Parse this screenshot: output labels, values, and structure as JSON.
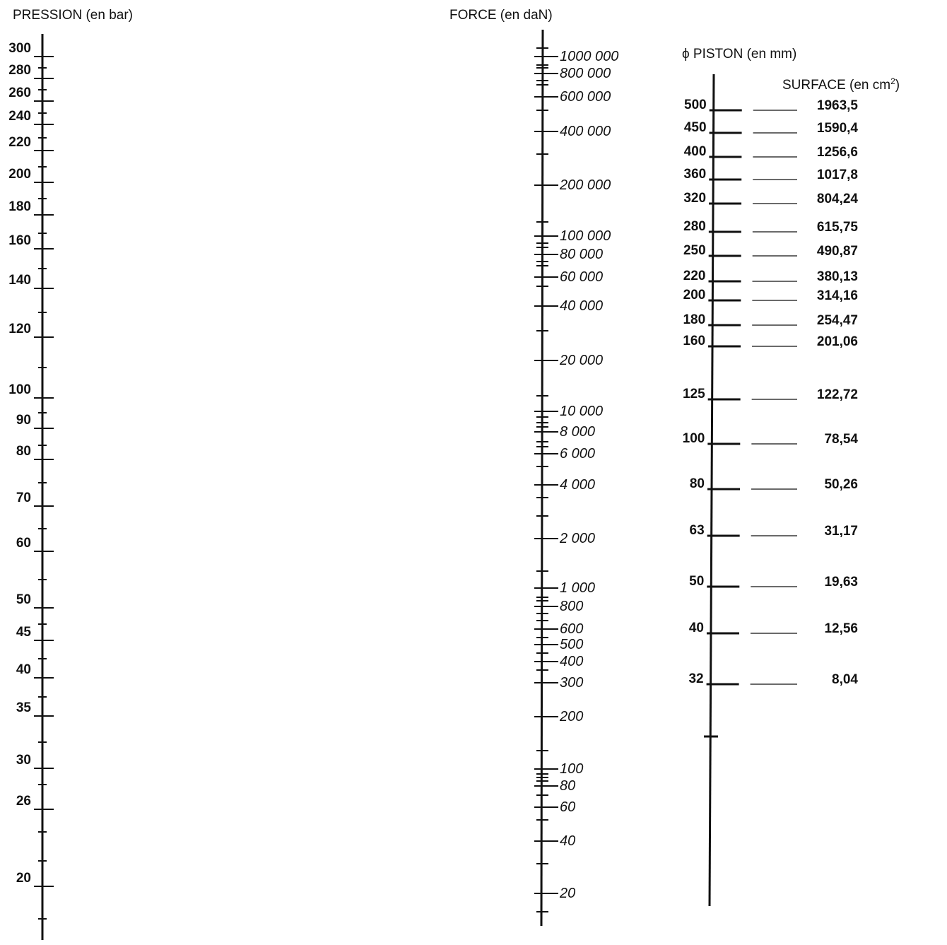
{
  "headers": {
    "pression": "PRESSION (en bar)",
    "force": "FORCE (en daN)",
    "piston": "ϕ PISTON (en mm)",
    "surface_prefix": "SURFACE (en cm",
    "surface_sup": "2",
    "surface_suffix": ")"
  },
  "pression": {
    "labels": [
      "300",
      "280",
      "260",
      "240",
      "220",
      "200",
      "180",
      "160",
      "140",
      "120",
      "100",
      "90",
      "80",
      "70",
      "60",
      "50",
      "45",
      "40",
      "35",
      "30",
      "26",
      "20"
    ]
  },
  "force": {
    "labels": [
      "1000 000",
      "800 000",
      "600 000",
      "400 000",
      "200 000",
      "100 000",
      "80 000",
      "60 000",
      "40 000",
      "20 000",
      "10 000",
      "8 000",
      "6 000",
      "4 000",
      "2 000",
      "1 000",
      "800",
      "600",
      "500",
      "400",
      "300",
      "200",
      "100",
      "80",
      "60",
      "40",
      "20"
    ]
  },
  "piston": {
    "rows": [
      {
        "diameter": "500",
        "surface": "1963,5"
      },
      {
        "diameter": "450",
        "surface": "1590,4"
      },
      {
        "diameter": "400",
        "surface": "1256,6"
      },
      {
        "diameter": "360",
        "surface": "1017,8"
      },
      {
        "diameter": "320",
        "surface": "804,24"
      },
      {
        "diameter": "280",
        "surface": "615,75"
      },
      {
        "diameter": "250",
        "surface": "490,87"
      },
      {
        "diameter": "220",
        "surface": "380,13"
      },
      {
        "diameter": "200",
        "surface": "314,16"
      },
      {
        "diameter": "180",
        "surface": "254,47"
      },
      {
        "diameter": "160",
        "surface": "201,06"
      },
      {
        "diameter": "125",
        "surface": "122,72"
      },
      {
        "diameter": "100",
        "surface": "78,54"
      },
      {
        "diameter": "80",
        "surface": "50,26"
      },
      {
        "diameter": "63",
        "surface": "31,17"
      },
      {
        "diameter": "50",
        "surface": "19,63"
      },
      {
        "diameter": "40",
        "surface": "12,56"
      },
      {
        "diameter": "32",
        "surface": "8,04"
      }
    ]
  }
}
